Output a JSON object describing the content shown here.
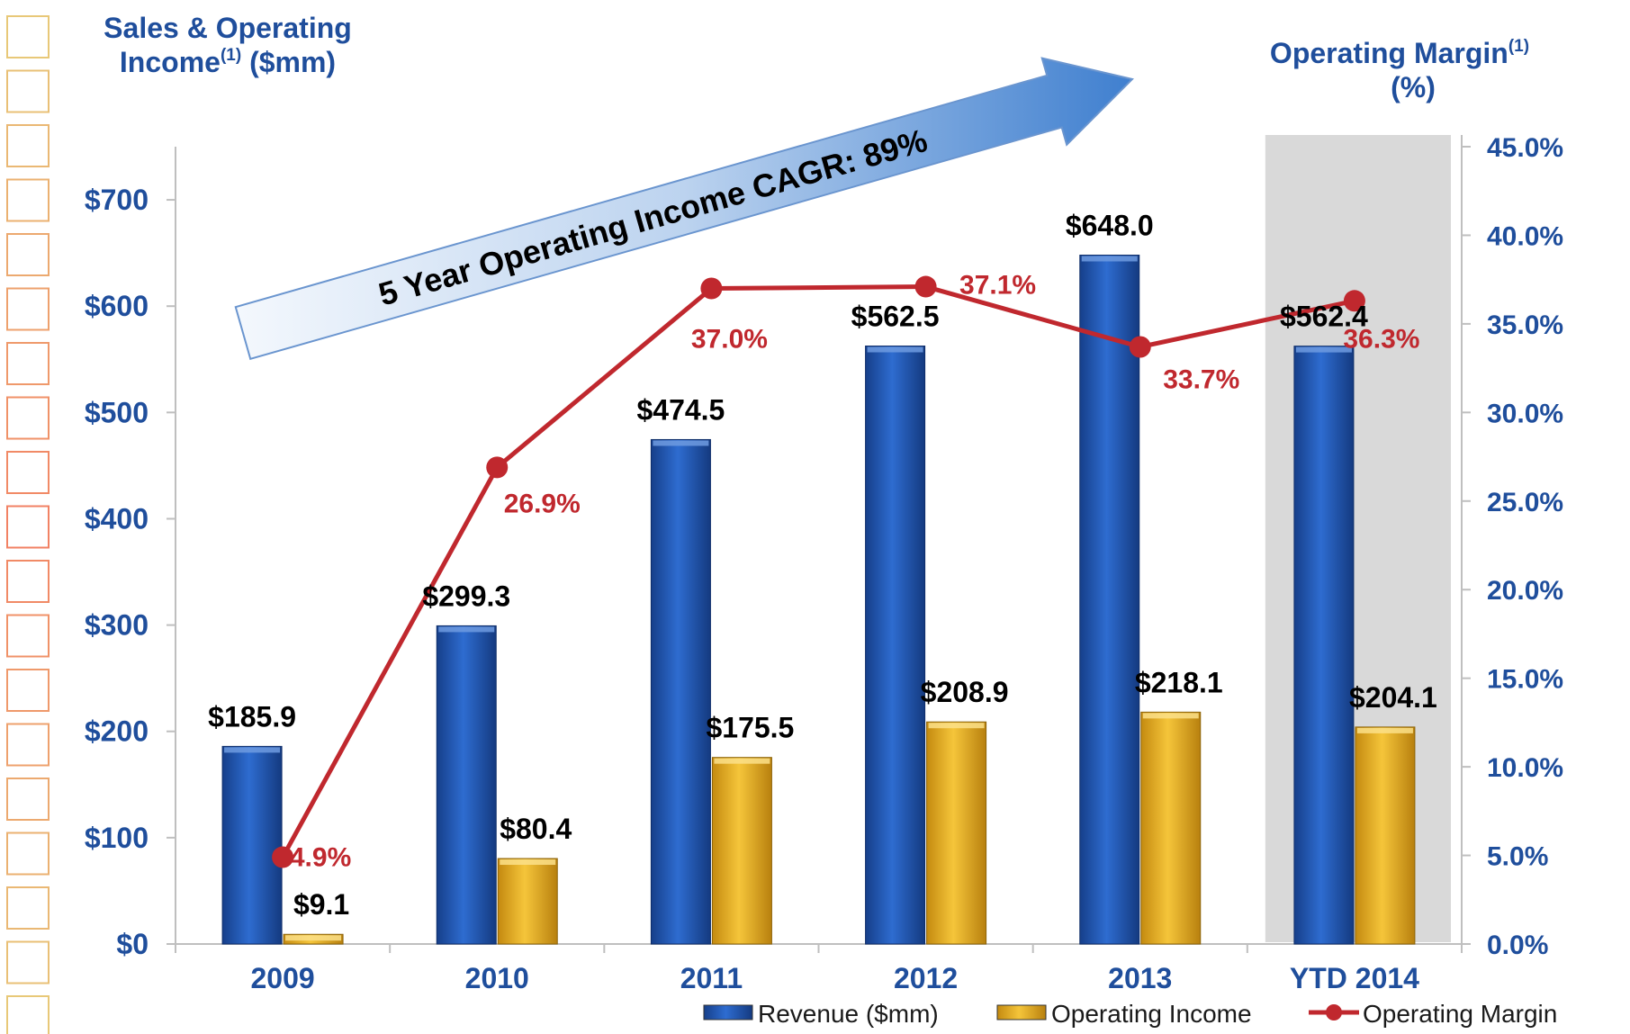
{
  "chart_data": {
    "type": "bar",
    "title": "",
    "left_axis_title": [
      "Sales & Operating",
      "Income",
      "(1)",
      " ($mm)"
    ],
    "right_axis_title": [
      "Operating Margin",
      "(1)",
      "(%)"
    ],
    "categories": [
      "2009",
      "2010",
      "2011",
      "2012",
      "2013",
      "YTD 2014"
    ],
    "ylim": [
      0,
      750
    ],
    "y_ticks": [
      0,
      100,
      200,
      300,
      400,
      500,
      600,
      700
    ],
    "y_tick_labels": [
      "$0",
      "$100",
      "$200",
      "$300",
      "$400",
      "$500",
      "$600",
      "$700"
    ],
    "y2lim": [
      0,
      45
    ],
    "y2_ticks": [
      0,
      5,
      10,
      15,
      20,
      25,
      30,
      35,
      40,
      45
    ],
    "y2_tick_labels": [
      "0.0%",
      "5.0%",
      "10.0%",
      "15.0%",
      "20.0%",
      "25.0%",
      "30.0%",
      "35.0%",
      "40.0%",
      "45.0%"
    ],
    "series": [
      {
        "name": "Revenue ($mm)",
        "type": "bar",
        "axis": "left",
        "color": "#1f55b0",
        "values": [
          185.9,
          299.3,
          474.5,
          562.5,
          648.0,
          562.4
        ],
        "labels": [
          "$185.9",
          "$299.3",
          "$474.5",
          "$562.5",
          "$648.0",
          "$562.4"
        ]
      },
      {
        "name": "Operating Income",
        "type": "bar",
        "axis": "left",
        "color": "#e8b020",
        "values": [
          9.1,
          80.4,
          175.5,
          208.9,
          218.1,
          204.1
        ],
        "labels": [
          "$9.1",
          "$80.4",
          "$175.5",
          "$208.9",
          "$218.1",
          "$204.1"
        ]
      },
      {
        "name": "Operating Margin",
        "type": "line",
        "axis": "right",
        "color": "#c0282e",
        "values": [
          4.9,
          26.9,
          37.0,
          37.1,
          33.7,
          36.3
        ],
        "labels": [
          "4.9%",
          "26.9%",
          "37.0%",
          "37.1%",
          "33.7%",
          "36.3%"
        ]
      }
    ],
    "highlight_category": "YTD 2014",
    "annotation": "5 Year Operating Income CAGR: 89%",
    "legend_position": "bottom-right",
    "grid": false
  }
}
